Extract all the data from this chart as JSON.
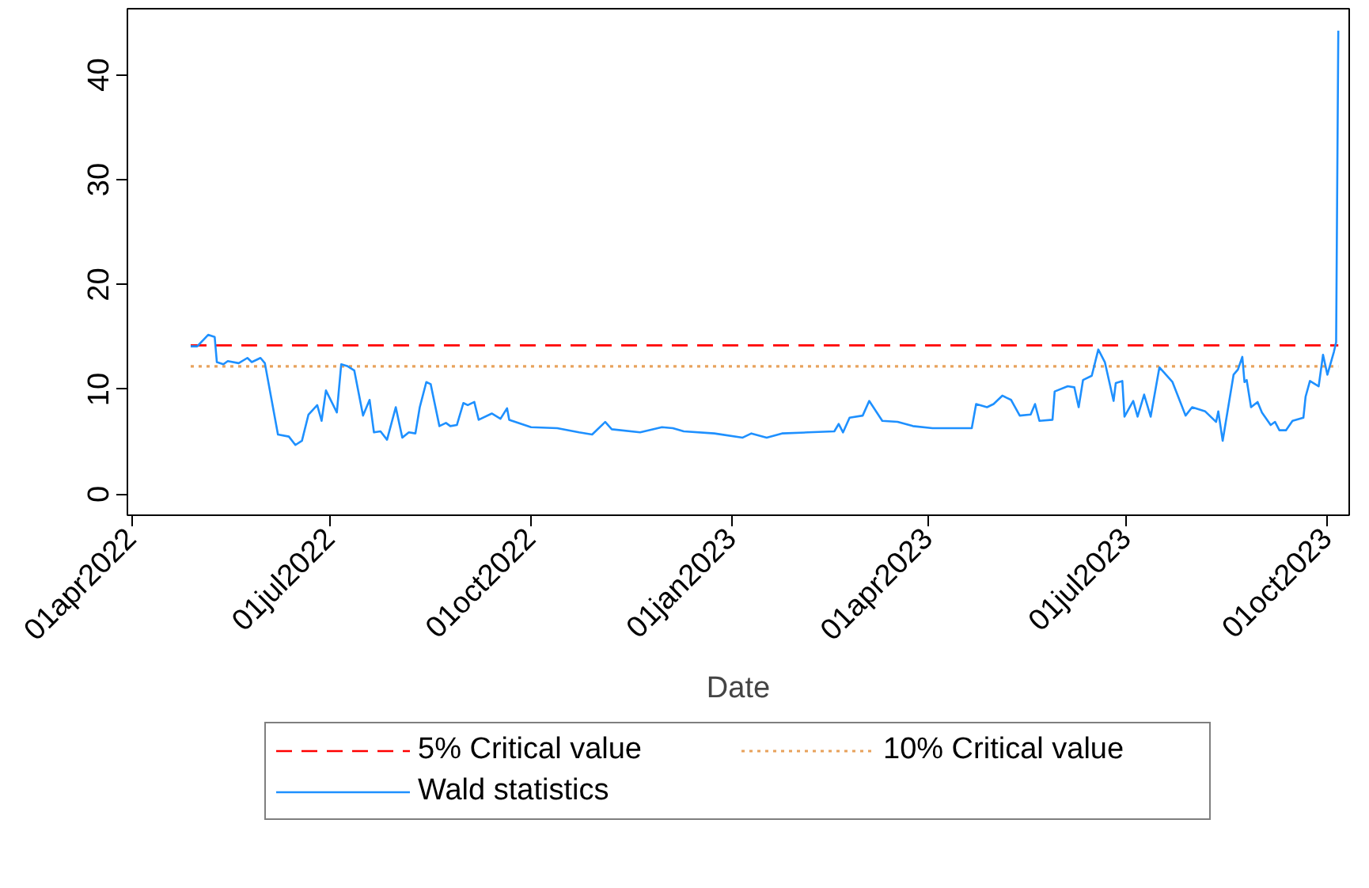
{
  "chart_data": {
    "type": "line",
    "xlabel": "Date",
    "legend": "bottom",
    "grid": false,
    "xlim": [
      "2022-03-30",
      "2023-10-11"
    ],
    "ylim": [
      -2,
      46.3
    ],
    "xticks": [
      {
        "value": "2022-04-01",
        "label": "01apr2022"
      },
      {
        "value": "2022-07-01",
        "label": "01jul2022"
      },
      {
        "value": "2022-10-01",
        "label": "01oct2022"
      },
      {
        "value": "2023-01-01",
        "label": "01jan2023"
      },
      {
        "value": "2023-04-01",
        "label": "01apr2023"
      },
      {
        "value": "2023-07-01",
        "label": "01jul2023"
      },
      {
        "value": "2023-10-01",
        "label": "01oct2023"
      }
    ],
    "yticks": [
      0,
      10,
      20,
      30,
      40
    ],
    "series": [
      {
        "name": "5% Critical value",
        "color": "#ff0000",
        "line_style": "dashed",
        "x": [
          "2022-04-28",
          "2023-10-06"
        ],
        "values": [
          14.2,
          14.2
        ]
      },
      {
        "name": "10% Critical value",
        "color": "#e8a25c",
        "line_style": "dotted",
        "x": [
          "2022-04-28",
          "2023-10-06"
        ],
        "values": [
          12.2,
          12.2
        ]
      },
      {
        "name": "Wald statistics",
        "color": "#1e90ff",
        "line_style": "solid",
        "x": [
          "2022-04-28",
          "2022-05-01",
          "2022-05-06",
          "2022-05-09",
          "2022-05-10",
          "2022-05-13",
          "2022-05-15",
          "2022-05-20",
          "2022-05-24",
          "2022-05-26",
          "2022-05-30",
          "2022-06-01",
          "2022-06-07",
          "2022-06-12",
          "2022-06-15",
          "2022-06-18",
          "2022-06-21",
          "2022-06-25",
          "2022-06-27",
          "2022-06-29",
          "2022-07-04",
          "2022-07-06",
          "2022-07-09",
          "2022-07-12",
          "2022-07-16",
          "2022-07-19",
          "2022-07-21",
          "2022-07-24",
          "2022-07-27",
          "2022-07-31",
          "2022-08-03",
          "2022-08-06",
          "2022-08-09",
          "2022-08-11",
          "2022-08-14",
          "2022-08-16",
          "2022-08-20",
          "2022-08-23",
          "2022-08-25",
          "2022-08-28",
          "2022-08-31",
          "2022-09-02",
          "2022-09-05",
          "2022-09-07",
          "2022-09-13",
          "2022-09-17",
          "2022-09-20",
          "2022-09-21",
          "2022-10-01",
          "2022-10-13",
          "2022-10-23",
          "2022-10-29",
          "2022-11-04",
          "2022-11-07",
          "2022-11-20",
          "2022-11-30",
          "2022-12-05",
          "2022-12-10",
          "2022-12-24",
          "2023-01-06",
          "2023-01-10",
          "2023-01-17",
          "2023-01-24",
          "2023-02-05",
          "2023-02-17",
          "2023-02-19",
          "2023-02-21",
          "2023-02-24",
          "2023-03-02",
          "2023-03-05",
          "2023-03-11",
          "2023-03-18",
          "2023-03-25",
          "2023-04-03",
          "2023-04-21",
          "2023-04-23",
          "2023-04-28",
          "2023-05-01",
          "2023-05-05",
          "2023-05-09",
          "2023-05-13",
          "2023-05-18",
          "2023-05-20",
          "2023-05-22",
          "2023-05-28",
          "2023-05-29",
          "2023-06-04",
          "2023-06-07",
          "2023-06-09",
          "2023-06-11",
          "2023-06-15",
          "2023-06-18",
          "2023-06-21",
          "2023-06-25",
          "2023-06-26",
          "2023-06-29",
          "2023-06-30",
          "2023-07-04",
          "2023-07-06",
          "2023-07-09",
          "2023-07-12",
          "2023-07-16",
          "2023-07-22",
          "2023-07-28",
          "2023-07-31",
          "2023-08-06",
          "2023-08-11",
          "2023-08-12",
          "2023-08-14",
          "2023-08-19",
          "2023-08-21",
          "2023-08-23",
          "2023-08-24",
          "2023-08-25",
          "2023-08-27",
          "2023-08-30",
          "2023-09-01",
          "2023-09-05",
          "2023-09-07",
          "2023-09-09",
          "2023-09-12",
          "2023-09-15",
          "2023-09-20",
          "2023-09-21",
          "2023-09-23",
          "2023-09-27",
          "2023-09-29",
          "2023-10-01",
          "2023-10-04",
          "2023-10-05",
          "2023-10-06"
        ],
        "values": [
          14.1,
          14.1,
          15.2,
          15.0,
          12.6,
          12.4,
          12.7,
          12.5,
          13.0,
          12.6,
          13.0,
          12.5,
          5.7,
          5.5,
          4.7,
          5.1,
          7.6,
          8.5,
          7.0,
          9.9,
          7.8,
          12.4,
          12.2,
          11.8,
          7.5,
          9.0,
          5.9,
          6.0,
          5.2,
          8.3,
          5.4,
          5.9,
          5.8,
          8.3,
          10.7,
          10.5,
          6.5,
          6.8,
          6.5,
          6.6,
          8.7,
          8.5,
          8.8,
          7.1,
          7.7,
          7.2,
          8.2,
          7.1,
          6.4,
          6.3,
          5.9,
          5.7,
          6.9,
          6.2,
          5.9,
          6.4,
          6.3,
          6.0,
          5.8,
          5.4,
          5.8,
          5.4,
          5.8,
          5.9,
          6.0,
          6.7,
          5.9,
          7.3,
          7.5,
          8.9,
          7.0,
          6.9,
          6.5,
          6.3,
          6.3,
          8.6,
          8.3,
          8.6,
          9.4,
          9.0,
          7.5,
          7.6,
          8.6,
          7.0,
          7.1,
          9.8,
          10.3,
          10.2,
          8.3,
          10.9,
          11.3,
          13.8,
          12.6,
          8.9,
          10.6,
          10.8,
          7.4,
          8.9,
          7.4,
          9.5,
          7.4,
          12.1,
          10.7,
          7.5,
          8.3,
          7.9,
          6.9,
          7.9,
          5.1,
          11.4,
          11.9,
          13.1,
          10.7,
          10.9,
          8.3,
          8.8,
          7.8,
          6.6,
          6.9,
          6.1,
          6.1,
          7.0,
          7.3,
          9.3,
          10.8,
          10.3,
          13.3,
          11.4,
          13.6,
          14.5,
          44.2
        ]
      }
    ]
  }
}
